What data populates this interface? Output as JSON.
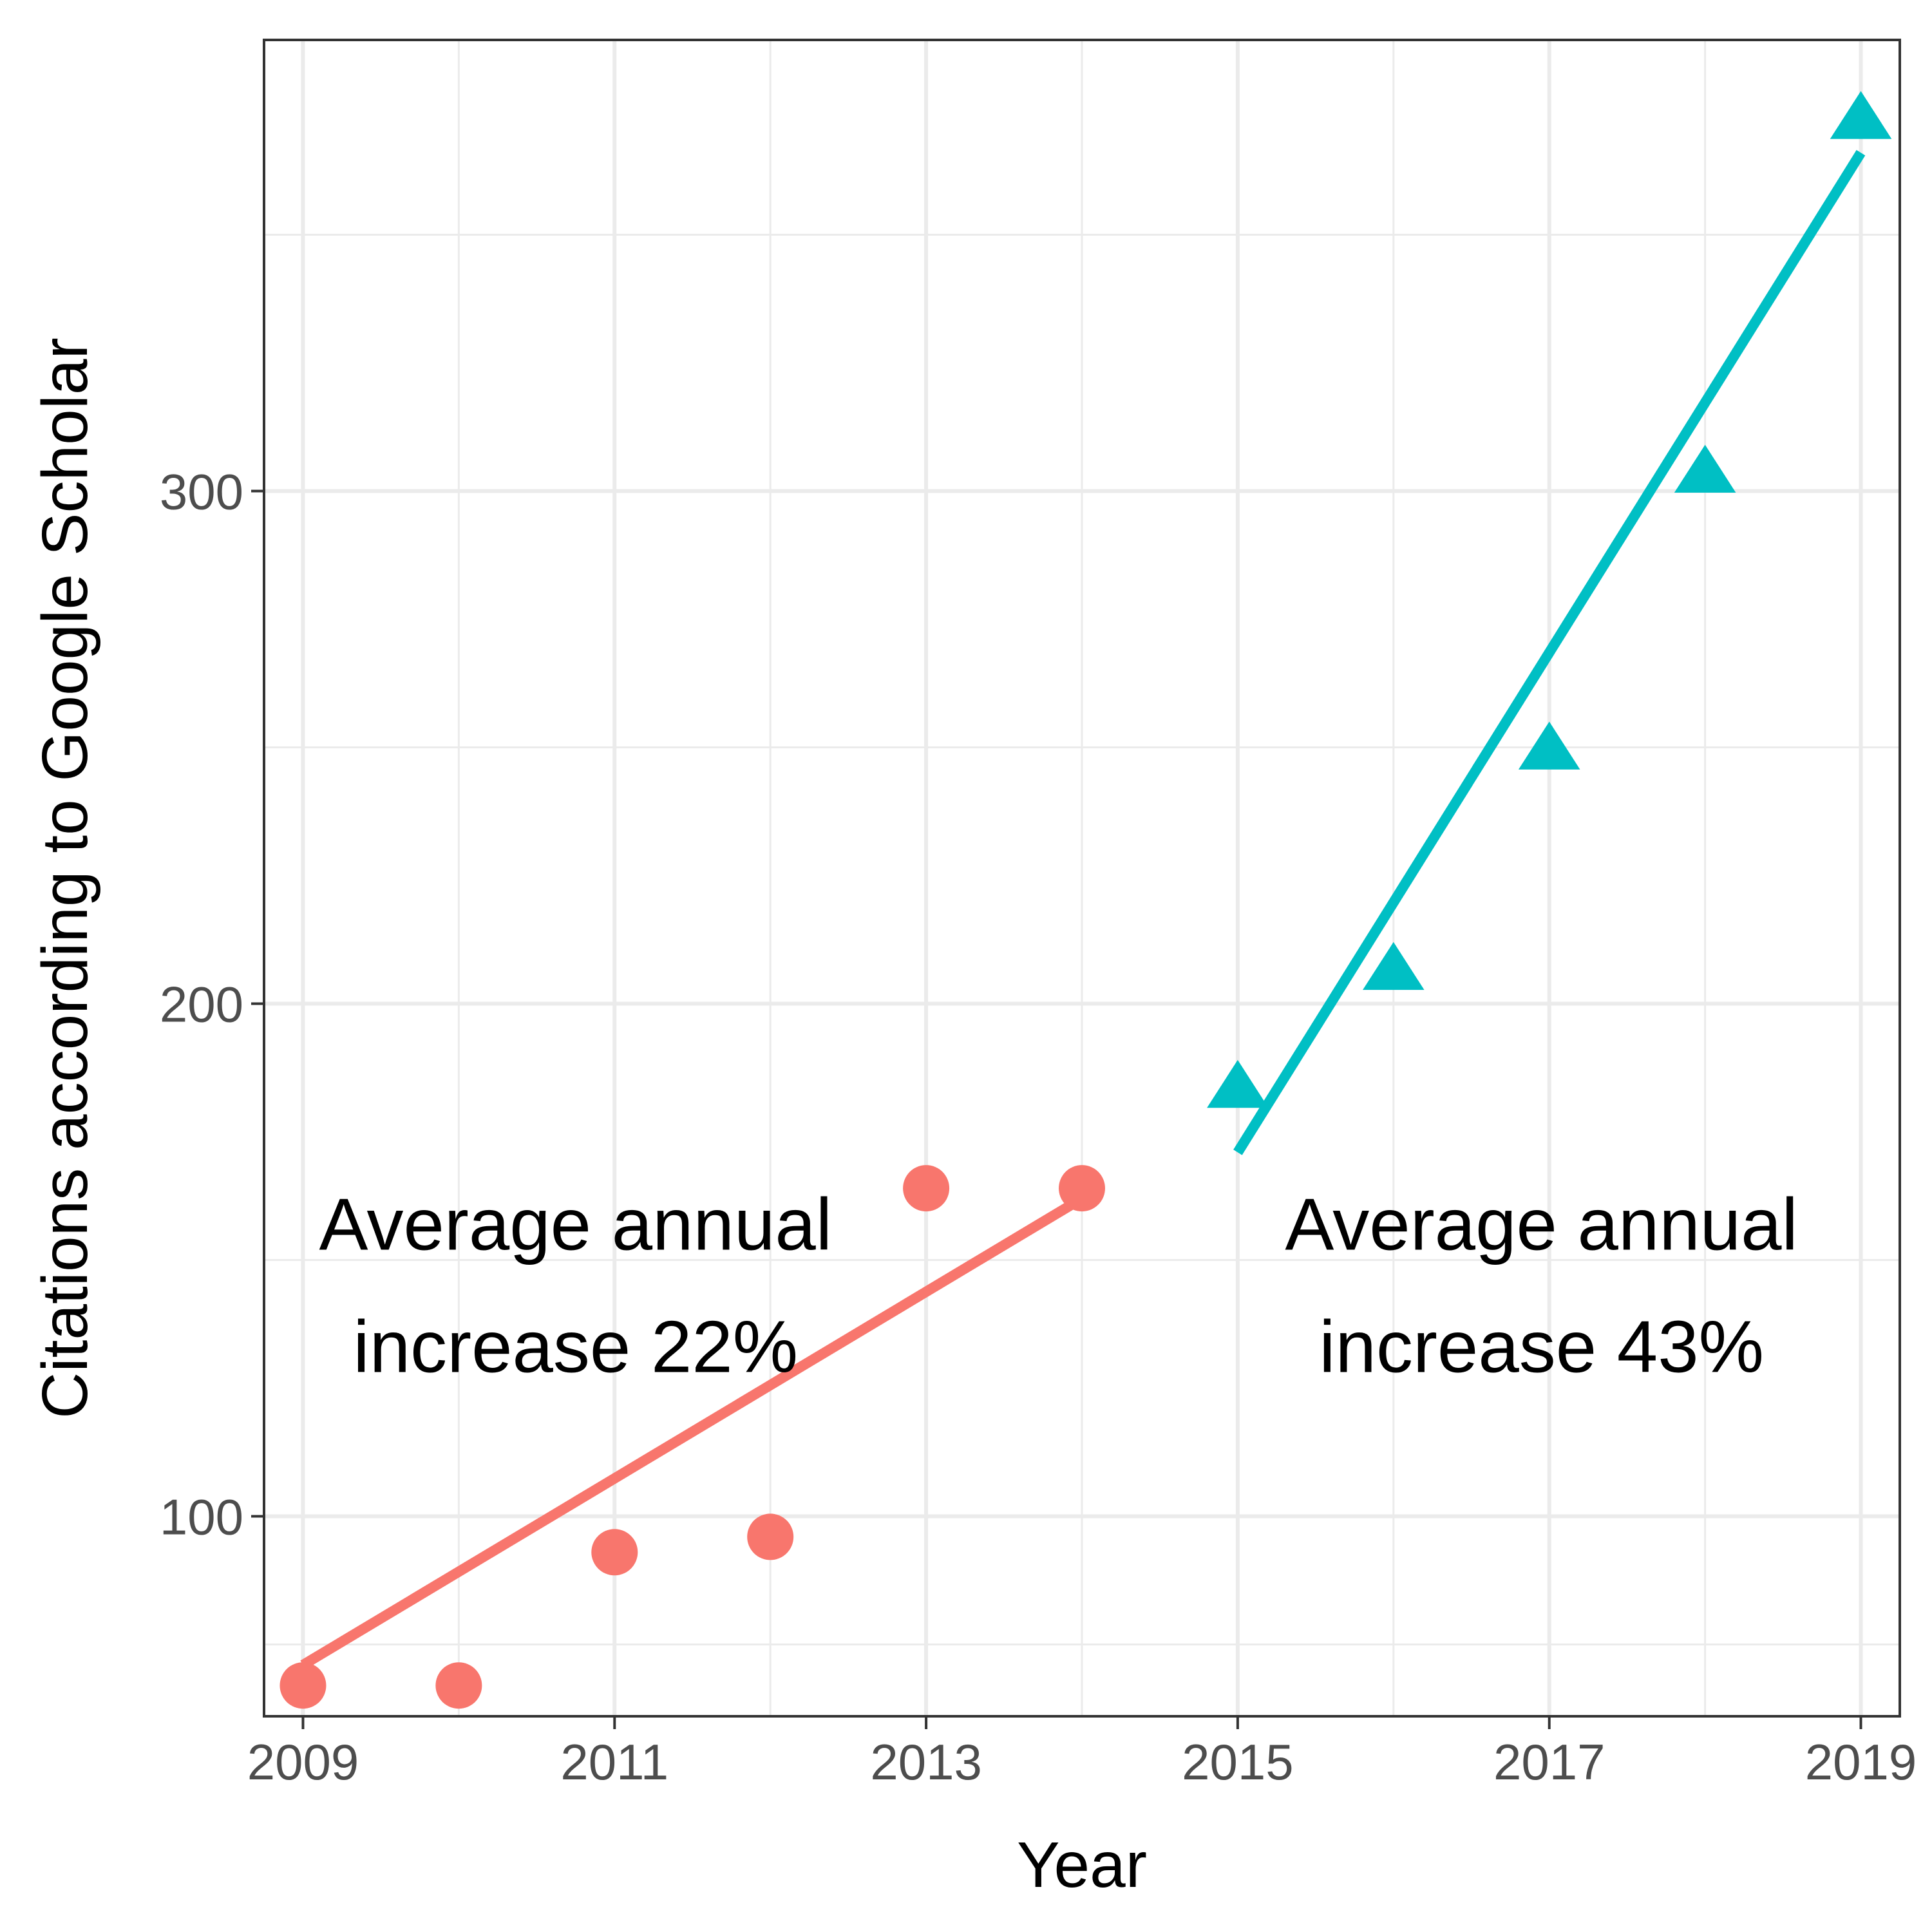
{
  "chart_data": {
    "type": "scatter",
    "xlabel": "Year",
    "ylabel": "Citations according to Google Scholar",
    "xlim": [
      2008.75,
      2019.25
    ],
    "ylim": [
      61,
      388
    ],
    "x_ticks": [
      2009,
      2011,
      2013,
      2015,
      2017,
      2019
    ],
    "y_ticks": [
      100,
      200,
      300
    ],
    "x_minor_gridlines": [
      2010,
      2012,
      2014,
      2016,
      2018
    ],
    "y_minor_gridlines": [
      75,
      150,
      250,
      350
    ],
    "grid": true,
    "legend": "none",
    "series": [
      {
        "marker": "circle",
        "color": "#F8766D",
        "x": [
          2009,
          2010,
          2011,
          2012,
          2013,
          2014
        ],
        "y": [
          67,
          67,
          93,
          96,
          164,
          164
        ],
        "trend_line": {
          "x": [
            2009,
            2014
          ],
          "y": [
            71,
            162
          ]
        }
      },
      {
        "marker": "triangle",
        "color": "#00BFC4",
        "x": [
          2015,
          2016,
          2017,
          2018,
          2019
        ],
        "y": [
          183,
          206,
          249,
          303,
          372
        ],
        "trend_line": {
          "x": [
            2015,
            2019
          ],
          "y": [
            171,
            366
          ]
        }
      }
    ],
    "annotations": [
      {
        "lines": [
          "Average annual",
          "increase 22%"
        ],
        "x": 2010.75,
        "y": 152
      },
      {
        "lines": [
          "Average annual",
          "increase 43%"
        ],
        "x": 2016.95,
        "y": 152
      }
    ]
  }
}
